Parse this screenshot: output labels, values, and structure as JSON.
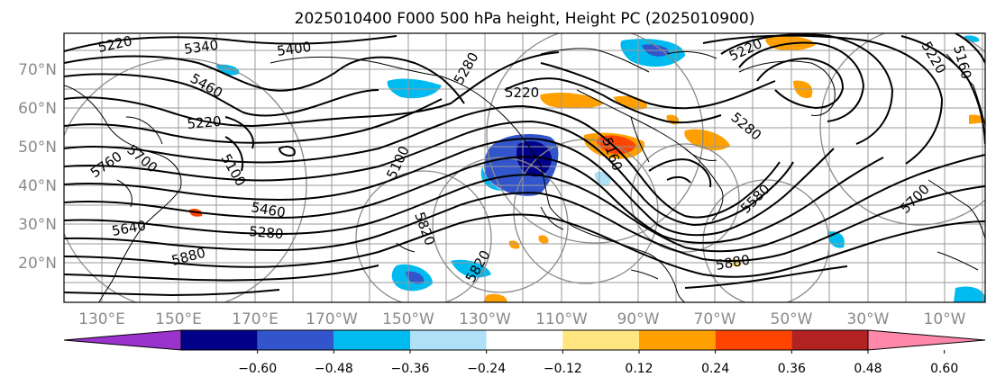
{
  "chart_data": {
    "type": "heatmap",
    "title": "2025010400 F000 500 hPa height, Height PC (2025010900)",
    "xlabel": "",
    "ylabel": "",
    "x_ticks": [
      "130°E",
      "150°E",
      "170°E",
      "170°W",
      "150°W",
      "130°W",
      "110°W",
      "90°W",
      "70°W",
      "50°W",
      "30°W",
      "10°W"
    ],
    "y_ticks": [
      "70°N",
      "60°N",
      "50°N",
      "40°N",
      "30°N",
      "20°N"
    ],
    "grid": true,
    "legend": "colorbar-bottom",
    "colorbar": {
      "tick_labels": [
        "−0.60",
        "−0.48",
        "−0.36",
        "−0.24",
        "−0.12",
        "0.12",
        "0.24",
        "0.36",
        "0.48",
        "0.60"
      ],
      "colors": [
        "#9933cc",
        "#000088",
        "#3355cc",
        "#00bbf0",
        "#aee0f8",
        "#ffffff",
        "#ffe680",
        "#ffa000",
        "#ff4400",
        "#b22222",
        "#ff88aa"
      ],
      "extend": "both"
    },
    "contour_labels": [
      "5220",
      "5340",
      "5400",
      "5460",
      "5220",
      "5280",
      "5220",
      "5700",
      "5100",
      "5640",
      "5760",
      "5460",
      "5880",
      "5100",
      "5820",
      "5820",
      "5280",
      "5160",
      "5220",
      "5280",
      "5220",
      "5580",
      "5880",
      "5700",
      "5160"
    ]
  }
}
